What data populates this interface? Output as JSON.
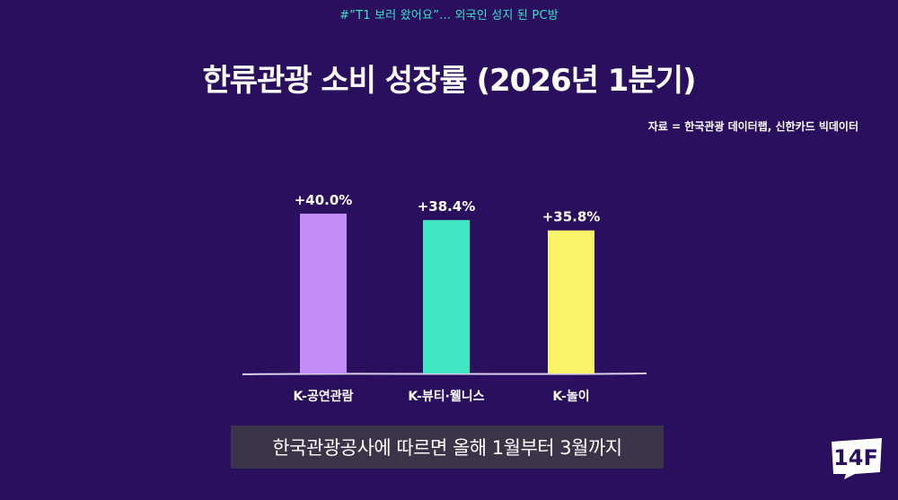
{
  "episode_title": "#”T1 보러 왔어요”... 외국인 성지 된 PC방",
  "source": "자료 = 한국관광 데이터랩, 신한카드 빅데이터",
  "subtitle": "한국관광공사에 따르면 올해 1월부터 3월까지",
  "logo_text": "14F",
  "colors": {
    "background": "#2a0f5e",
    "axis": "#d8d0ec",
    "bars": [
      "#c48cf7",
      "#3fe8c3",
      "#f9f46a"
    ],
    "episode_title": "#35e6c8"
  },
  "chart_data": {
    "type": "bar",
    "title": "한류관광 소비 성장률 (2026년 1분기)",
    "categories": [
      "K-공연관람",
      "K-뷰티·웰니스",
      "K-놀이"
    ],
    "values": [
      40.0,
      38.4,
      35.8
    ],
    "value_labels": [
      "+40.0%",
      "+38.4%",
      "+35.8%"
    ],
    "unit": "%",
    "ylim": [
      0,
      40.0
    ],
    "grid": false,
    "legend": "none"
  }
}
